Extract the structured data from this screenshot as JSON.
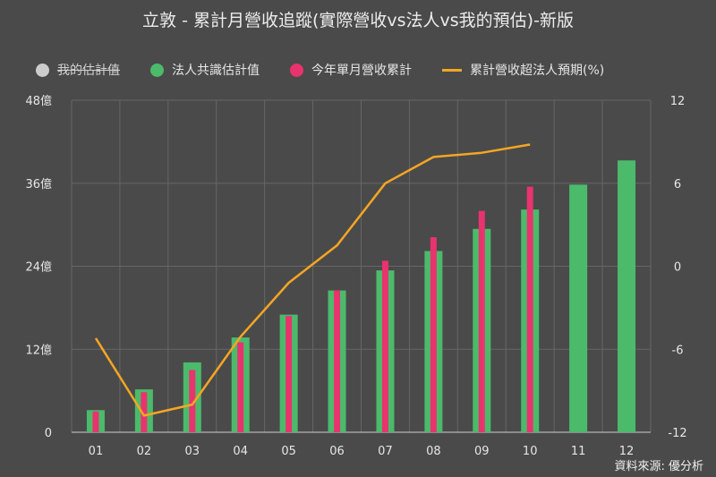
{
  "title": "立敦 - 累計月營收追蹤(實際營收vs法人vs我的預估)-新版",
  "source": "資料來源: 優分析",
  "legend": [
    {
      "label": "我的估計值",
      "kind": "dot",
      "color": "#cccccc",
      "hidden": true
    },
    {
      "label": "法人共識估計值",
      "kind": "dot",
      "color": "#4cba6b",
      "hidden": false
    },
    {
      "label": "今年單月營收累計",
      "kind": "dot",
      "color": "#e8336e",
      "hidden": false
    },
    {
      "label": "累計營收超法人預期(%)",
      "kind": "line",
      "color": "#f5a623",
      "hidden": false
    }
  ],
  "colors": {
    "consensus": "#4cba6b",
    "actual": "#e8336e",
    "line": "#f5a623",
    "grid": "#666666"
  },
  "chart_data": {
    "type": "bar",
    "categories": [
      "01",
      "02",
      "03",
      "04",
      "05",
      "06",
      "07",
      "08",
      "09",
      "10",
      "11",
      "12"
    ],
    "y_left": {
      "ylim": [
        0,
        48
      ],
      "ticks": [
        0,
        12,
        24,
        36,
        48
      ],
      "tick_labels": [
        "0",
        "12億",
        "24億",
        "36億",
        "48億"
      ]
    },
    "y_right": {
      "ylim": [
        -12,
        12
      ],
      "ticks": [
        -12,
        -6,
        0,
        6,
        12
      ],
      "tick_labels": [
        "-12",
        "-6",
        "0",
        "6",
        "12"
      ]
    },
    "series": [
      {
        "name": "法人共識估計值",
        "type": "bar",
        "axis": "left",
        "values": [
          3.2,
          6.2,
          10.1,
          13.7,
          17.0,
          20.5,
          23.4,
          26.2,
          29.4,
          32.2,
          35.8,
          39.3
        ]
      },
      {
        "name": "今年單月營收累計",
        "type": "bar",
        "axis": "left",
        "values": [
          3.0,
          5.8,
          9.0,
          13.0,
          16.8,
          20.5,
          24.8,
          28.2,
          32.0,
          35.5,
          null,
          null
        ]
      },
      {
        "name": "累計營收超法人預期(%)",
        "type": "line",
        "axis": "right",
        "values": [
          -5.2,
          -10.8,
          -10.0,
          -5.1,
          -1.2,
          1.5,
          6.0,
          7.9,
          8.2,
          8.8,
          null,
          null
        ]
      }
    ]
  }
}
